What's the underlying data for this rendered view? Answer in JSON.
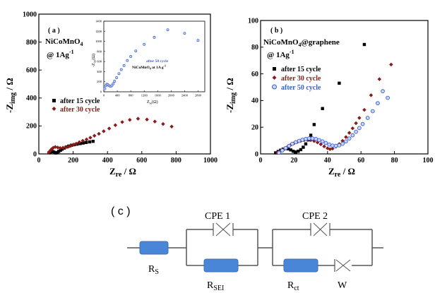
{
  "chart_data": [
    {
      "id": "a",
      "type": "scatter",
      "panel_label": "( a )",
      "sample": "NiCoMnO",
      "sample_sub": "4",
      "rate": "@ 1Ag",
      "rate_sup": "-1",
      "xlabel": "Z",
      "xlabel_sub": "re",
      "xlabel_unit": " / Ω",
      "ylabel": "-Z",
      "ylabel_sub": "img",
      "ylabel_unit": " / Ω",
      "xlim": [
        0,
        1000
      ],
      "ylim": [
        0,
        1000
      ],
      "xticks": [
        "0",
        "200",
        "400",
        "600",
        "800",
        "1000"
      ],
      "yticks": [
        "0",
        "200",
        "400",
        "600",
        "800",
        "1000"
      ],
      "series": [
        {
          "name": "after 15 cycle",
          "marker": "square",
          "color": "#000000",
          "points": [
            [
              60,
              8
            ],
            [
              68,
              14
            ],
            [
              76,
              18
            ],
            [
              84,
              16
            ],
            [
              92,
              10
            ],
            [
              100,
              7
            ],
            [
              108,
              10
            ],
            [
              116,
              18
            ],
            [
              126,
              26
            ],
            [
              136,
              34
            ],
            [
              148,
              42
            ],
            [
              160,
              50
            ],
            [
              174,
              56
            ],
            [
              190,
              62
            ],
            [
              206,
              66
            ],
            [
              222,
              70
            ],
            [
              240,
              74
            ],
            [
              258,
              78
            ],
            [
              276,
              82
            ],
            [
              296,
              86
            ],
            [
              316,
              90
            ]
          ]
        },
        {
          "name": "after 30 cycle",
          "marker": "diamond",
          "color": "#8b1a1a",
          "points": [
            [
              58,
              10
            ],
            [
              66,
              22
            ],
            [
              74,
              34
            ],
            [
              84,
              44
            ],
            [
              96,
              50
            ],
            [
              110,
              46
            ],
            [
              124,
              42
            ],
            [
              140,
              44
            ],
            [
              156,
              48
            ],
            [
              172,
              52
            ],
            [
              186,
              58
            ],
            [
              202,
              66
            ],
            [
              218,
              74
            ],
            [
              236,
              84
            ],
            [
              256,
              94
            ],
            [
              278,
              104
            ],
            [
              300,
              116
            ],
            [
              324,
              130
            ],
            [
              350,
              144
            ],
            [
              378,
              162
            ],
            [
              410,
              182
            ],
            [
              446,
              206
            ],
            [
              486,
              228
            ],
            [
              530,
              244
            ],
            [
              578,
              252
            ],
            [
              630,
              246
            ],
            [
              676,
              232
            ],
            [
              724,
              214
            ],
            [
              774,
              196
            ]
          ]
        }
      ],
      "inset": {
        "type": "scatter",
        "series_label": "after 50 cycle",
        "caption": "NiCoMnO",
        "caption_sub": "4",
        "caption_rest": " at 1A g",
        "caption_sup": "-1",
        "xlabel": "Z",
        "xlabel_sub": "re",
        "xlabel_unit": "(Ω)",
        "ylabel": "-Z",
        "ylabel_sub": "im",
        "ylabel_unit": "(Ω)",
        "xlim": [
          0,
          3000
        ],
        "ylim": [
          0,
          1400
        ],
        "xticks": [
          "0",
          "400",
          "800",
          "1200",
          "1600",
          "2000",
          "2400",
          "2800"
        ],
        "yticks": [
          "0",
          "200",
          "400",
          "600",
          "800",
          "1000",
          "1200",
          "1400"
        ],
        "color": "#3a5fcd",
        "points": [
          [
            30,
            60
          ],
          [
            60,
            120
          ],
          [
            90,
            150
          ],
          [
            120,
            140
          ],
          [
            160,
            120
          ],
          [
            200,
            110
          ],
          [
            240,
            120
          ],
          [
            280,
            160
          ],
          [
            320,
            210
          ],
          [
            380,
            280
          ],
          [
            450,
            360
          ],
          [
            520,
            440
          ],
          [
            600,
            520
          ],
          [
            700,
            620
          ],
          [
            800,
            700
          ],
          [
            950,
            810
          ],
          [
            1200,
            940
          ],
          [
            1500,
            1080
          ],
          [
            1900,
            1230
          ],
          [
            2400,
            1160
          ],
          [
            2800,
            1020
          ]
        ]
      }
    },
    {
      "id": "b",
      "type": "scatter",
      "panel_label": "( b )",
      "sample": "NiCoMnO",
      "sample_sub": "4",
      "sample_rest": "@graphene",
      "rate": "@ 1Ag",
      "rate_sup": "-1",
      "xlabel": "Z",
      "xlabel_sub": "re",
      "xlabel_unit": " / Ω",
      "ylabel": "-Z",
      "ylabel_sub": "img",
      "ylabel_unit": " / Ω",
      "xlim": [
        0,
        100
      ],
      "ylim": [
        0,
        100
      ],
      "xticks": [
        "0",
        "20",
        "40",
        "60",
        "80",
        "100"
      ],
      "yticks": [
        "0",
        "20",
        "40",
        "60",
        "80",
        "100"
      ],
      "series": [
        {
          "name": "after 15 cycle",
          "marker": "square",
          "color": "#000000",
          "points": [
            [
              9,
              0.8
            ],
            [
              10.5,
              1.8
            ],
            [
              12,
              2.8
            ],
            [
              13.5,
              3.6
            ],
            [
              15,
              4.0
            ],
            [
              16.5,
              3.8
            ],
            [
              18,
              3.0
            ],
            [
              19.5,
              2.0
            ],
            [
              21,
              1.4
            ],
            [
              22.5,
              2.0
            ],
            [
              24,
              3.2
            ],
            [
              25.5,
              5.0
            ],
            [
              27,
              7.5
            ],
            [
              28.5,
              10.5
            ],
            [
              30,
              14
            ],
            [
              32,
              22
            ],
            [
              37,
              34
            ],
            [
              47,
              53
            ],
            [
              62,
              82
            ]
          ]
        },
        {
          "name": "after 30 cycle",
          "marker": "diamond",
          "color": "#8b1a1a",
          "points": [
            [
              10,
              0.8
            ],
            [
              12,
              2.2
            ],
            [
              14,
              3.8
            ],
            [
              16,
              5.2
            ],
            [
              18,
              6.8
            ],
            [
              20,
              8.0
            ],
            [
              22,
              9.0
            ],
            [
              24,
              9.8
            ],
            [
              26,
              10.3
            ],
            [
              28,
              10.5
            ],
            [
              30,
              10.3
            ],
            [
              32,
              9.6
            ],
            [
              34,
              8.6
            ],
            [
              36,
              7.2
            ],
            [
              38,
              5.6
            ],
            [
              40,
              4.2
            ],
            [
              41.5,
              3.6
            ],
            [
              43,
              4.0
            ],
            [
              45,
              5.4
            ],
            [
              47,
              7.4
            ],
            [
              49,
              9.8
            ],
            [
              51,
              12.6
            ],
            [
              53,
              15.8
            ],
            [
              55,
              19.2
            ],
            [
              57,
              23
            ],
            [
              59,
              27
            ],
            [
              62,
              33
            ],
            [
              66,
              44
            ],
            [
              71,
              56
            ],
            [
              78,
              67
            ]
          ]
        },
        {
          "name": "after 50 cycle",
          "marker": "circle",
          "color": "#3a5fcd",
          "points": [
            [
              11,
              0.9
            ],
            [
              13,
              2.6
            ],
            [
              15,
              4.4
            ],
            [
              17,
              6.0
            ],
            [
              19,
              7.6
            ],
            [
              21,
              8.8
            ],
            [
              23,
              9.8
            ],
            [
              25,
              10.6
            ],
            [
              27,
              11.2
            ],
            [
              29,
              11.6
            ],
            [
              31,
              11.6
            ],
            [
              33,
              11.2
            ],
            [
              35,
              10.4
            ],
            [
              37,
              9.4
            ],
            [
              39,
              8.2
            ],
            [
              41,
              7.0
            ],
            [
              43,
              6.2
            ],
            [
              45,
              6.0
            ],
            [
              47,
              6.4
            ],
            [
              49,
              7.6
            ],
            [
              51,
              9.4
            ],
            [
              53,
              11.6
            ],
            [
              55,
              14.0
            ],
            [
              57,
              16.6
            ],
            [
              59,
              19.4
            ],
            [
              61,
              22.4
            ],
            [
              64,
              27
            ],
            [
              67,
              32
            ],
            [
              70,
              38
            ],
            [
              73,
              47
            ],
            [
              76,
              42
            ]
          ]
        }
      ]
    }
  ],
  "circuit": {
    "label": "( c )",
    "rs": "R",
    "rs_sub": "S",
    "cpe1": "CPE 1",
    "rsei": "R",
    "rsei_sub": "SEI",
    "cpe2": "CPE 2",
    "rct": "R",
    "rct_sub": "ct",
    "w": "W",
    "resistor_color": "#4a86d8"
  }
}
